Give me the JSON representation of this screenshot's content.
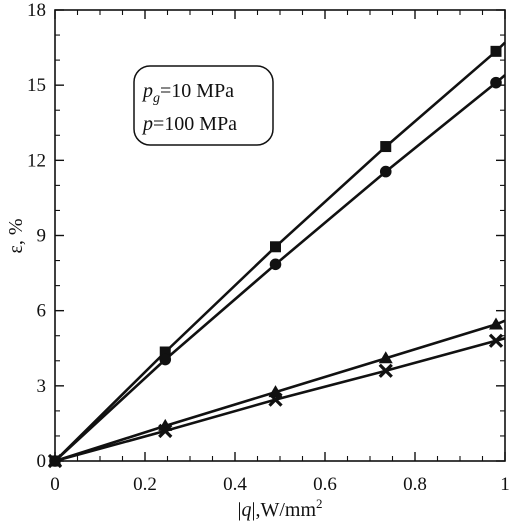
{
  "chart_data": {
    "type": "line",
    "xlabel_parts": {
      "bar_left": "|",
      "var": "q",
      "bar_right": "|",
      "units": ",W/mm",
      "exp": "2"
    },
    "ylabel": "ε, %",
    "xlim": [
      0,
      1
    ],
    "ylim": [
      0,
      18
    ],
    "x_ticks": [
      0,
      0.2,
      0.4,
      0.6,
      0.8,
      1
    ],
    "x_tick_labels": [
      "0",
      "0.2",
      "0.4",
      "0.6",
      "0.8",
      "1"
    ],
    "y_ticks": [
      0,
      3,
      6,
      9,
      12,
      15,
      18
    ],
    "y_tick_labels": [
      "0",
      "3",
      "6",
      "9",
      "12",
      "15",
      "18"
    ],
    "grid": false,
    "annotation": {
      "line1": {
        "var": "p",
        "sub": "g",
        "rest": "=10 MPa"
      },
      "line2": {
        "var": "p",
        "rest": "=100 MPa"
      }
    },
    "series": [
      {
        "marker": "square",
        "x": [
          0,
          0.245,
          0.49,
          0.735,
          0.98
        ],
        "y": [
          0,
          4.35,
          8.55,
          12.55,
          16.35
        ],
        "line_end": [
          1.0,
          16.7
        ]
      },
      {
        "marker": "circle",
        "x": [
          0,
          0.245,
          0.49,
          0.735,
          0.98
        ],
        "y": [
          0,
          4.05,
          7.85,
          11.55,
          15.1
        ],
        "line_end": [
          1.0,
          15.4
        ]
      },
      {
        "marker": "triangle",
        "x": [
          0,
          0.245,
          0.49,
          0.735,
          0.98
        ],
        "y": [
          0,
          1.4,
          2.75,
          4.1,
          5.45
        ],
        "line_end": [
          1.0,
          5.6
        ]
      },
      {
        "marker": "cross",
        "x": [
          0,
          0.245,
          0.49,
          0.735,
          0.98
        ],
        "y": [
          0,
          1.2,
          2.45,
          3.6,
          4.8
        ],
        "line_end": [
          1.0,
          4.9
        ]
      }
    ]
  }
}
